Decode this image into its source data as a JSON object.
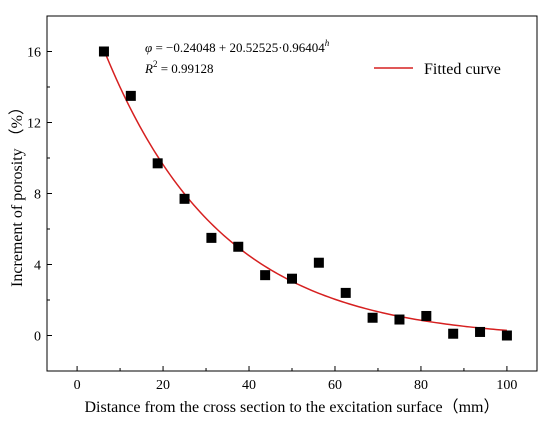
{
  "chart_data": {
    "type": "scatter",
    "title": "",
    "xlabel": "Distance from the cross section to the excitation surface（mm）",
    "ylabel": "Increment of porosity （%）",
    "xlim": [
      -7,
      107
    ],
    "ylim": [
      -2,
      18
    ],
    "xticks": [
      0,
      20,
      40,
      60,
      80,
      100
    ],
    "yticks": [
      0,
      4,
      8,
      12,
      16
    ],
    "grid": false,
    "colors": {
      "points": "#000000",
      "curve": "#d62020"
    },
    "series": [
      {
        "name": "",
        "x": [
          6.25,
          12.5,
          18.75,
          25,
          31.25,
          37.5,
          43.75,
          50,
          56.25,
          62.5,
          68.75,
          75,
          81.25,
          87.5,
          93.75,
          100
        ],
        "y": [
          16.0,
          13.5,
          9.7,
          7.7,
          5.5,
          5.0,
          3.4,
          3.2,
          4.1,
          2.4,
          1.0,
          0.9,
          1.1,
          0.1,
          0.2,
          0.0
        ]
      }
    ],
    "fit": {
      "name": "Fitted curve",
      "a": -0.24048,
      "b": 20.52525,
      "c": 0.96404,
      "x_range": [
        6,
        100
      ]
    },
    "equation": {
      "lhs": "φ",
      "rhs": " = −0.24048 + 20.52525·0.96404",
      "exponent": "h",
      "r2_label": "R",
      "r2_sup": "2",
      "r2_value": " = 0.99128"
    },
    "legend_position": "top-right"
  }
}
